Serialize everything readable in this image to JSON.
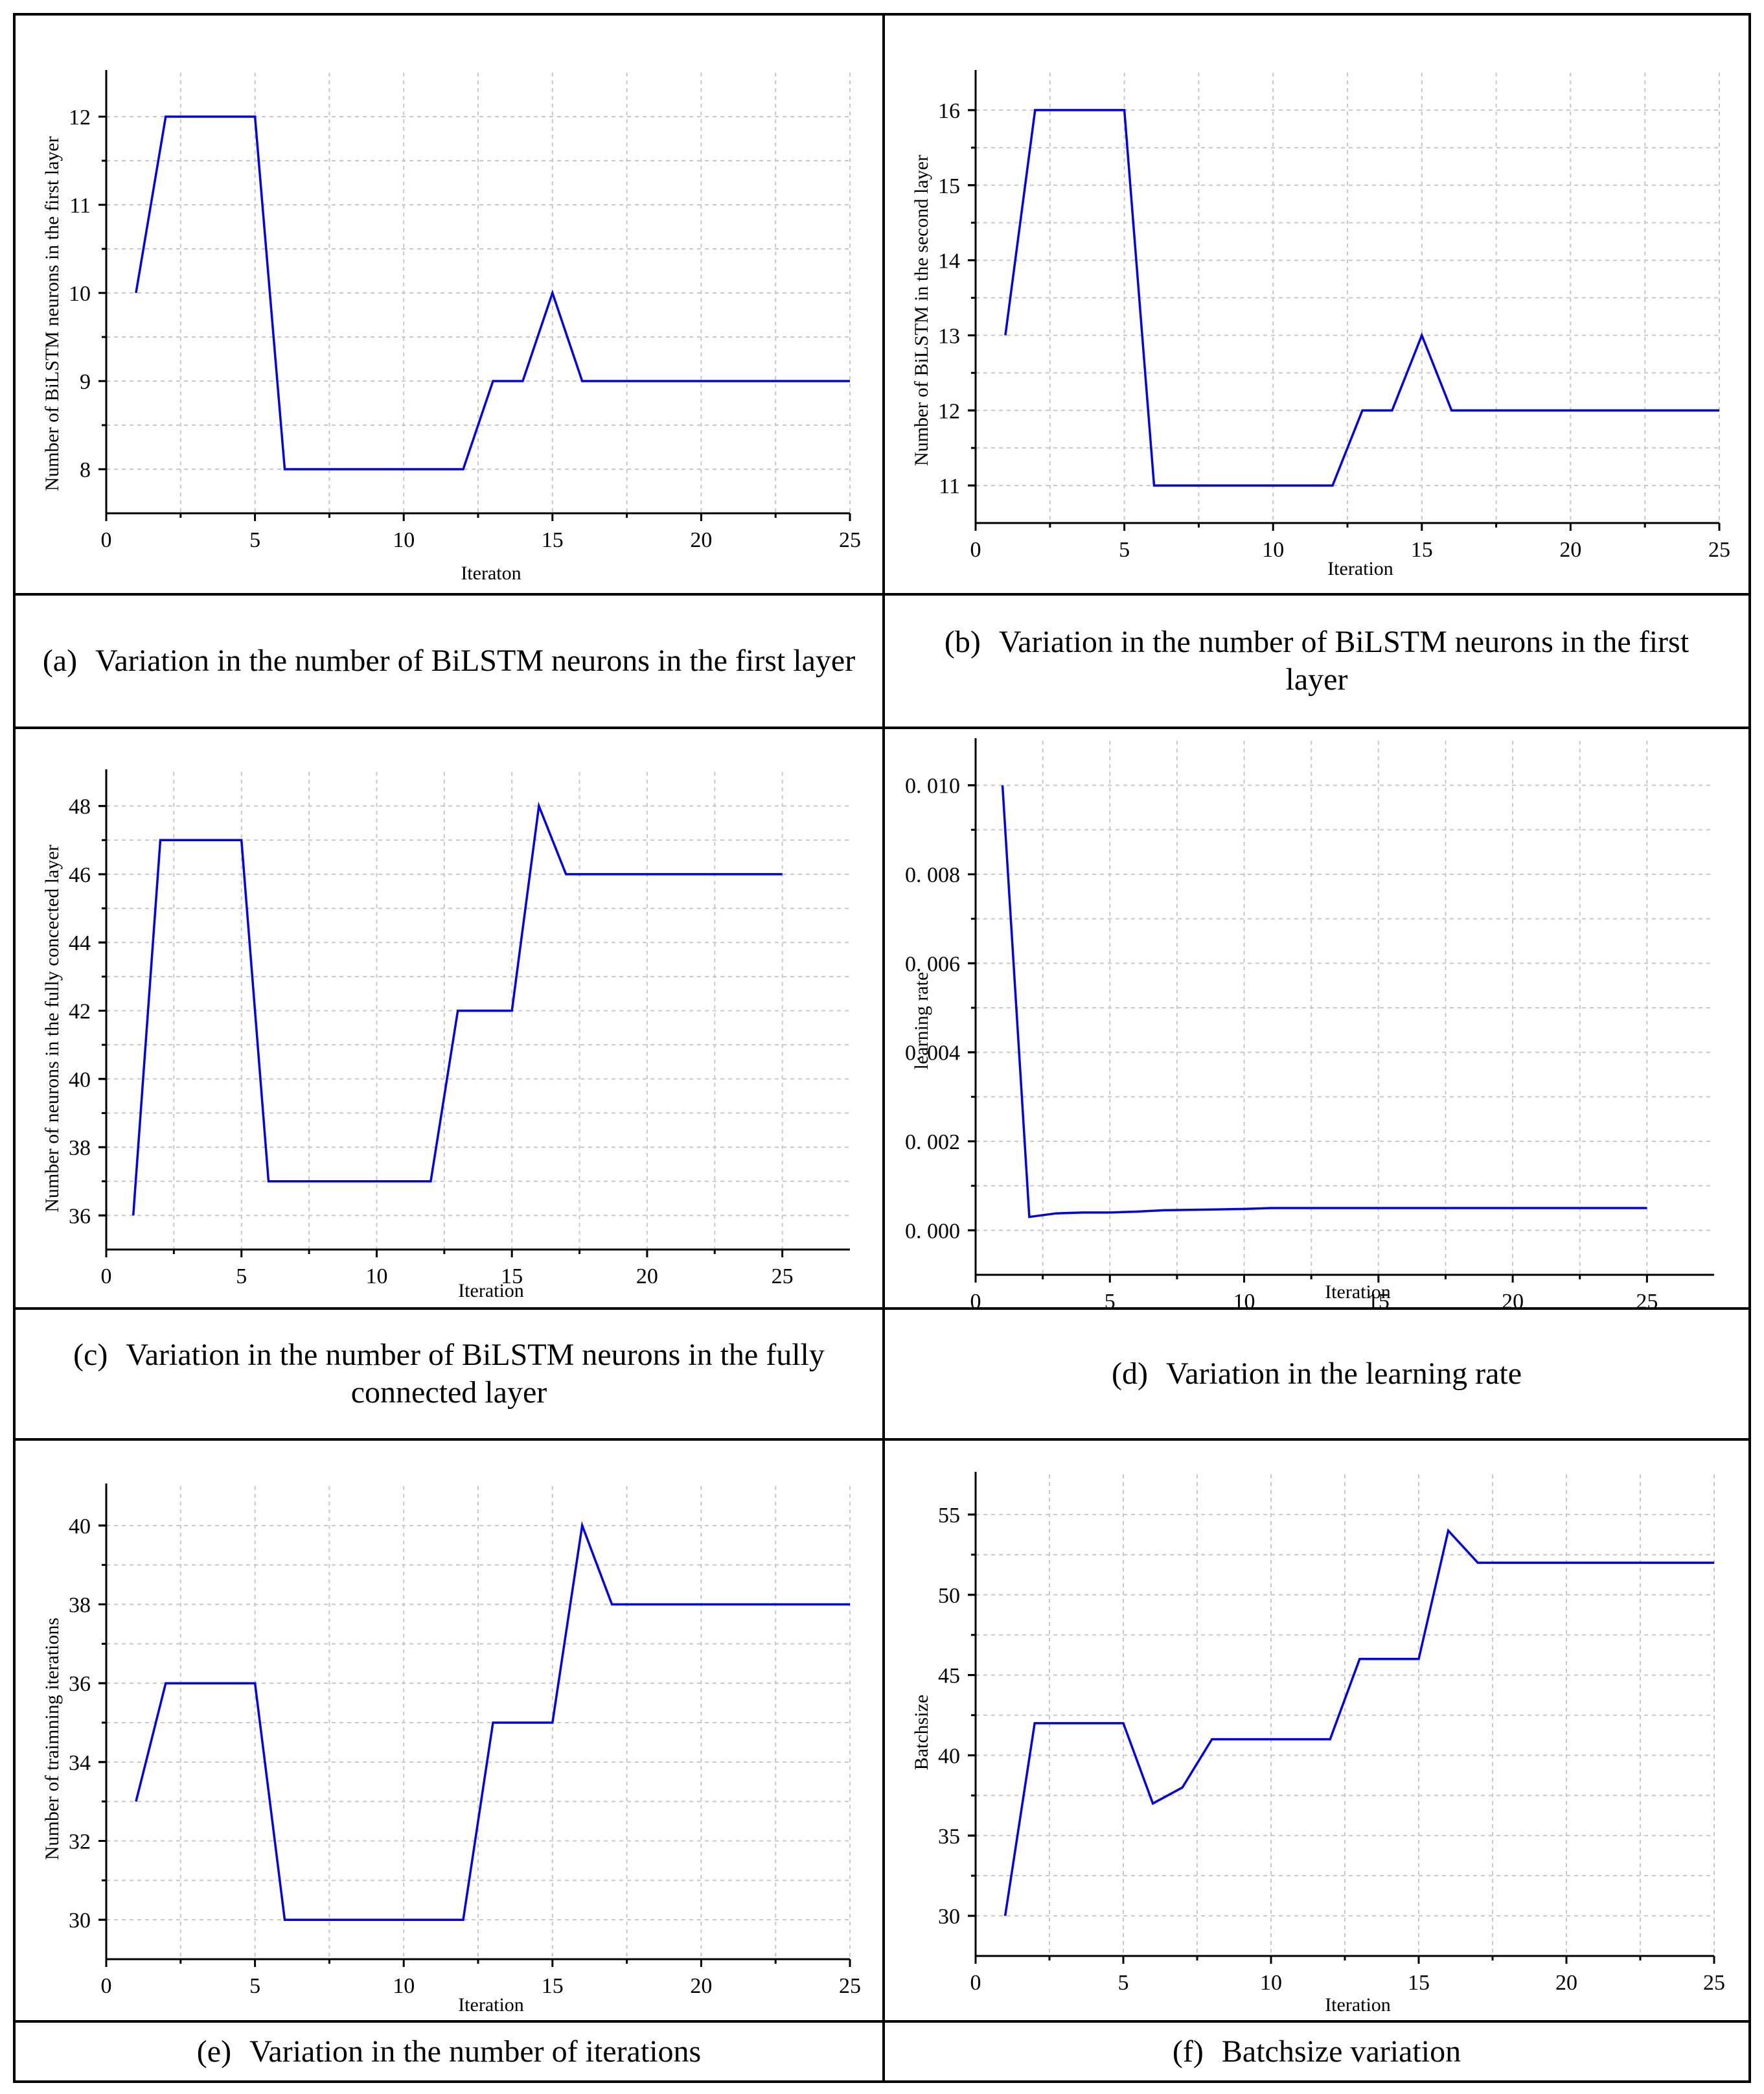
{
  "figure": {
    "line_color": "#0000ee",
    "grid_color": "#c8c8c8",
    "axis_color": "#000000"
  },
  "captions": [
    {
      "letter": "(a)",
      "text": "Variation in the number of BiLSTM neurons in the first layer"
    },
    {
      "letter": "(b)",
      "text": "Variation in the number of BiLSTM neurons in the first layer"
    },
    {
      "letter": "(c)",
      "text": "Variation in the number of BiLSTM neurons in the fully connected layer"
    },
    {
      "letter": "(d)",
      "text": "Variation in the learning rate"
    },
    {
      "letter": "(e)",
      "text": "Variation in the number of iterations"
    },
    {
      "letter": "(f)",
      "text": "Batchsize variation"
    }
  ],
  "chart_data": [
    {
      "type": "line",
      "panel": "a",
      "xlabel": "Iteraton",
      "ylabel": "Number of BiLSTM neurons in the first layer",
      "xlim": [
        0,
        25
      ],
      "ylim": [
        7.5,
        12.5
      ],
      "xticks": [
        "0",
        "5",
        "10",
        "15",
        "20",
        "25"
      ],
      "yticks": [
        "8",
        "9",
        "10",
        "11",
        "12"
      ],
      "x": [
        1,
        2,
        3,
        4,
        5,
        6,
        7,
        8,
        9,
        10,
        11,
        12,
        13,
        14,
        15,
        16,
        17,
        18,
        19,
        20,
        21,
        22,
        23,
        24,
        25
      ],
      "values": [
        10,
        12,
        12,
        12,
        12,
        8,
        8,
        8,
        8,
        8,
        8,
        8,
        9,
        9,
        10,
        9,
        9,
        9,
        9,
        9,
        9,
        9,
        9,
        9,
        9
      ]
    },
    {
      "type": "line",
      "panel": "b",
      "xlabel": "Iteration",
      "ylabel": "Number of BiLSTM in the second layer",
      "xlim": [
        0,
        25
      ],
      "ylim": [
        10.5,
        16.5
      ],
      "xticks": [
        "0",
        "5",
        "10",
        "15",
        "20",
        "25"
      ],
      "yticks": [
        "11",
        "12",
        "13",
        "14",
        "15",
        "16"
      ],
      "x": [
        1,
        2,
        3,
        4,
        5,
        6,
        7,
        8,
        9,
        10,
        11,
        12,
        13,
        14,
        15,
        16,
        17,
        18,
        19,
        20,
        21,
        22,
        23,
        24,
        25
      ],
      "values": [
        13,
        16,
        16,
        16,
        16,
        11,
        11,
        11,
        11,
        11,
        11,
        11,
        12,
        12,
        13,
        12,
        12,
        12,
        12,
        12,
        12,
        12,
        12,
        12,
        12
      ]
    },
    {
      "type": "line",
      "panel": "c",
      "xlabel": "Iteration",
      "ylabel": "Number of neurons in the fully concected layer",
      "xlim": [
        0,
        27.5
      ],
      "ylim": [
        35,
        49
      ],
      "xticks": [
        "0",
        "5",
        "10",
        "15",
        "20",
        "25"
      ],
      "yticks": [
        "36",
        "38",
        "40",
        "42",
        "44",
        "46",
        "48"
      ],
      "x": [
        1,
        2,
        3,
        4,
        5,
        6,
        7,
        8,
        9,
        10,
        11,
        12,
        13,
        14,
        15,
        16,
        17,
        18,
        19,
        20,
        21,
        22,
        23,
        24,
        25
      ],
      "values": [
        36,
        47,
        47,
        47,
        47,
        37,
        37,
        37,
        37,
        37,
        37,
        37,
        42,
        42,
        42,
        48,
        46,
        46,
        46,
        46,
        46,
        46,
        46,
        46,
        46
      ]
    },
    {
      "type": "line",
      "panel": "d",
      "xlabel": "Iteration",
      "ylabel": "learning rate",
      "xlim": [
        0,
        27.5
      ],
      "ylim": [
        -0.001,
        0.011
      ],
      "xticks": [
        "0",
        "5",
        "10",
        "15",
        "20",
        "25"
      ],
      "yticks": [
        "0. 000",
        "0. 002",
        "0. 004",
        "0. 006",
        "0. 008",
        "0. 010"
      ],
      "x": [
        1,
        2,
        3,
        4,
        5,
        6,
        7,
        8,
        9,
        10,
        11,
        12,
        13,
        14,
        15,
        16,
        17,
        18,
        19,
        20,
        21,
        22,
        23,
        24,
        25
      ],
      "values": [
        0.01,
        0.0003,
        0.00038,
        0.0004,
        0.0004,
        0.00042,
        0.00045,
        0.00046,
        0.00047,
        0.00048,
        0.0005,
        0.0005,
        0.0005,
        0.0005,
        0.0005,
        0.0005,
        0.0005,
        0.0005,
        0.0005,
        0.0005,
        0.0005,
        0.0005,
        0.0005,
        0.0005,
        0.0005
      ]
    },
    {
      "type": "line",
      "panel": "e",
      "xlabel": "Iteration",
      "ylabel": "Number of traimning iterations",
      "xlim": [
        0,
        25
      ],
      "ylim": [
        29,
        41
      ],
      "xticks": [
        "0",
        "5",
        "10",
        "15",
        "20",
        "25"
      ],
      "yticks": [
        "30",
        "32",
        "34",
        "36",
        "38",
        "40"
      ],
      "x": [
        1,
        2,
        3,
        4,
        5,
        6,
        7,
        8,
        9,
        10,
        11,
        12,
        13,
        14,
        15,
        16,
        17,
        18,
        19,
        20,
        21,
        22,
        23,
        24,
        25
      ],
      "values": [
        33,
        36,
        36,
        36,
        36,
        30,
        30,
        30,
        30,
        30,
        30,
        30,
        35,
        35,
        35,
        40,
        38,
        38,
        38,
        38,
        38,
        38,
        38,
        38,
        38
      ]
    },
    {
      "type": "line",
      "panel": "f",
      "xlabel": "Iteration",
      "ylabel": "Batchsize",
      "xlim": [
        0,
        25
      ],
      "ylim": [
        27.5,
        57.5
      ],
      "xticks": [
        "0",
        "5",
        "10",
        "15",
        "20",
        "25"
      ],
      "yticks": [
        "30",
        "35",
        "40",
        "45",
        "50",
        "55"
      ],
      "x": [
        1,
        2,
        3,
        4,
        5,
        6,
        7,
        8,
        9,
        10,
        11,
        12,
        13,
        14,
        15,
        16,
        17,
        18,
        19,
        20,
        21,
        22,
        23,
        24,
        25
      ],
      "values": [
        30,
        42,
        42,
        42,
        42,
        37,
        38,
        41,
        41,
        41,
        41,
        41,
        46,
        46,
        46,
        54,
        52,
        52,
        52,
        52,
        52,
        52,
        52,
        52,
        52
      ]
    }
  ]
}
